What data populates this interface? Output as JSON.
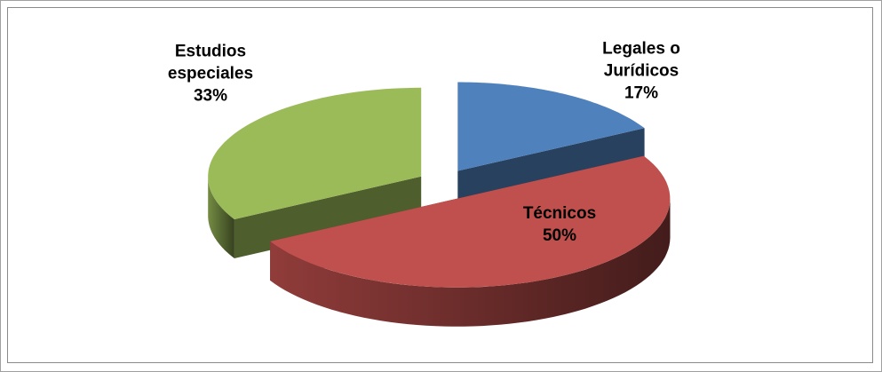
{
  "chart_data": {
    "type": "pie",
    "categories": [
      "Legales o Jurídicos",
      "Técnicos",
      "Estudios especiales"
    ],
    "values": [
      17,
      50,
      33
    ],
    "value_labels": [
      "17%",
      "50%",
      "33%"
    ],
    "colors": [
      "#4f81bd",
      "#c0504d",
      "#9bbb59"
    ],
    "three_d": true,
    "exploded": true
  }
}
